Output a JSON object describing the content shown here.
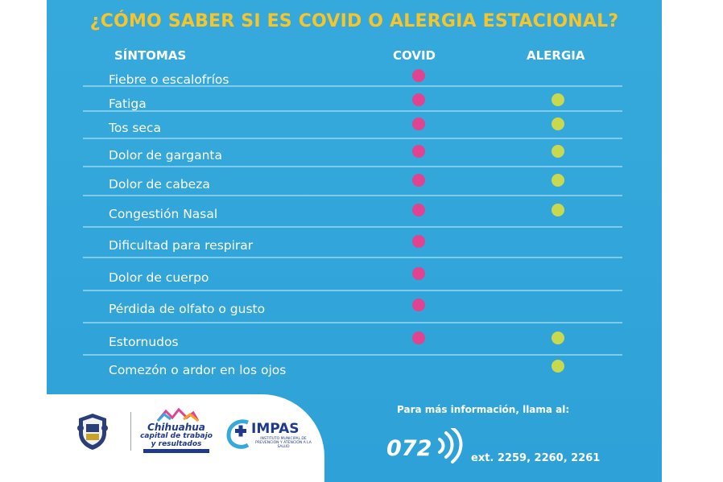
{
  "title": "¿CÓMO SABER SI ES COVID O ALERGIA ESTACIONAL?",
  "headers": {
    "symptoms": "SÍNTOMAS",
    "covid": "COVID",
    "allergy": "ALERGIA"
  },
  "colors": {
    "background": "#2ea2d8",
    "title": "#f5c52b",
    "covid_dot": "#e0438f",
    "allergy_dot": "#c8d94f"
  },
  "rows": [
    {
      "symptom": "Fiebre o escalofríos",
      "covid": true,
      "allergy": false
    },
    {
      "symptom": "Fatiga",
      "covid": true,
      "allergy": true
    },
    {
      "symptom": "Tos seca",
      "covid": true,
      "allergy": true
    },
    {
      "symptom": "Dolor de garganta",
      "covid": true,
      "allergy": true
    },
    {
      "symptom": "Dolor de cabeza",
      "covid": true,
      "allergy": true
    },
    {
      "symptom": "Congestión Nasal",
      "covid": true,
      "allergy": true
    },
    {
      "symptom": "Dificultad para respirar",
      "covid": true,
      "allergy": false
    },
    {
      "symptom": "Dolor de cuerpo",
      "covid": true,
      "allergy": false
    },
    {
      "symptom": "Pérdida de olfato o gusto",
      "covid": true,
      "allergy": false
    },
    {
      "symptom": "Estornudos",
      "covid": true,
      "allergy": true
    },
    {
      "symptom": "Comezón o ardor en los ojos",
      "covid": false,
      "allergy": true
    }
  ],
  "footer": {
    "crest_icon": "municipal-crest-icon",
    "city_brand": "Chihuahua",
    "city_tagline_1": "capital de trabajo",
    "city_tagline_2": "y resultados",
    "institute_name": "IMPAS",
    "institute_subtitle": "INSTITUTO MUNICIPAL DE PREVENCIÓN Y ATENCIÓN A LA SALUD",
    "info_text": "Para más información, llama al:",
    "phone": "072",
    "extensions": "ext. 2259, 2260, 2261"
  }
}
